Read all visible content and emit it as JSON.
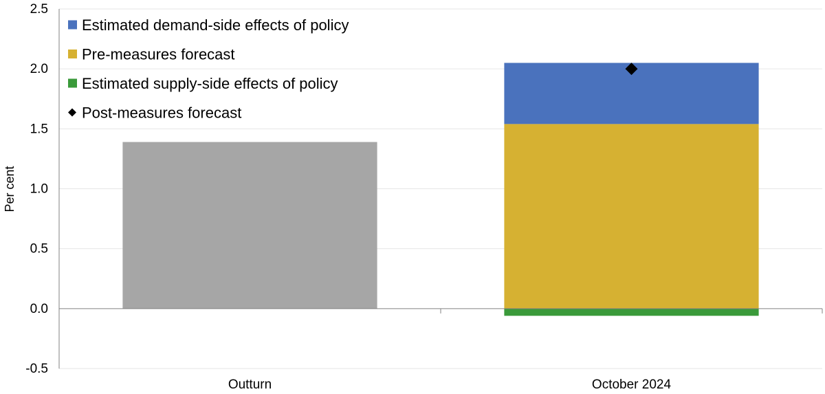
{
  "chart_data": {
    "type": "bar",
    "stacked": true,
    "ylabel": "Per cent",
    "ylim": [
      -0.5,
      2.5
    ],
    "yticks": [
      -0.5,
      0.0,
      0.5,
      1.0,
      1.5,
      2.0,
      2.5
    ],
    "ytick_labels": [
      "-0.5",
      "0.0",
      "0.5",
      "1.0",
      "1.5",
      "2.0",
      "2.5"
    ],
    "grid": true,
    "legend_position": "top-left",
    "categories": [
      "Outturn",
      "October 2024"
    ],
    "bars": [
      {
        "category": "Outturn",
        "segments": [
          {
            "name": "Outturn",
            "value": 1.39,
            "color": "#a6a6a6"
          }
        ]
      },
      {
        "category": "October 2024",
        "segments": [
          {
            "name": "Estimated supply-side effects of policy",
            "value": -0.06,
            "color": "#3a9a3a"
          },
          {
            "name": "Pre-measures forecast",
            "value": 1.54,
            "color": "#d6b132"
          },
          {
            "name": "Estimated demand-side effects of policy",
            "value": 0.51,
            "color": "#4a72bd"
          }
        ]
      }
    ],
    "markers": [
      {
        "name": "Post-measures forecast",
        "category": "October 2024",
        "value": 2.0,
        "shape": "diamond",
        "color": "#000000"
      }
    ],
    "legend": [
      {
        "label": "Estimated demand-side effects of policy",
        "color": "#4a72bd",
        "shape": "square"
      },
      {
        "label": "Pre-measures forecast",
        "color": "#d6b132",
        "shape": "square"
      },
      {
        "label": "Estimated supply-side effects of policy",
        "color": "#3a9a3a",
        "shape": "square"
      },
      {
        "label": "Post-measures forecast",
        "color": "#000000",
        "shape": "diamond"
      }
    ]
  }
}
